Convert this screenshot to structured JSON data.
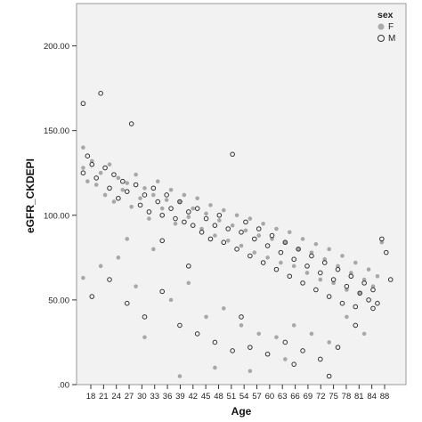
{
  "chart_data": {
    "type": "scatter",
    "xlabel": "Age",
    "ylabel": "eGFR_CKDEPI",
    "ylim": [
      0,
      225
    ],
    "y_ticks": [
      ".00",
      "50.00",
      "100.00",
      "150.00",
      "200.00"
    ],
    "y_tick_values": [
      0,
      50,
      100,
      150,
      200
    ],
    "x_ticks": [
      "18",
      "21",
      "24",
      "27",
      "30",
      "33",
      "36",
      "39",
      "42",
      "45",
      "48",
      "51",
      "54",
      "57",
      "60",
      "63",
      "66",
      "69",
      "72",
      "75",
      "78",
      "81",
      "84",
      "88"
    ],
    "grid": false,
    "background": "#f2f2f2",
    "legend": {
      "title": "sex",
      "placement": "top-right",
      "entries": [
        {
          "label": "F",
          "marker": "filled-circle",
          "color": "#aaaaaa"
        },
        {
          "label": "M",
          "marker": "open-circle",
          "color": "#333333"
        }
      ]
    },
    "series": [
      {
        "name": "F",
        "marker": "filled",
        "color": "#a8a8a8",
        "points": [
          [
            18,
            140
          ],
          [
            18,
            128
          ],
          [
            19,
            120
          ],
          [
            20,
            132
          ],
          [
            21,
            118
          ],
          [
            22,
            125
          ],
          [
            23,
            112
          ],
          [
            24,
            130
          ],
          [
            25,
            108
          ],
          [
            26,
            122
          ],
          [
            27,
            115
          ],
          [
            28,
            119
          ],
          [
            29,
            105
          ],
          [
            30,
            124
          ],
          [
            31,
            110
          ],
          [
            32,
            116
          ],
          [
            33,
            98
          ],
          [
            34,
            112
          ],
          [
            35,
            120
          ],
          [
            36,
            104
          ],
          [
            37,
            109
          ],
          [
            38,
            115
          ],
          [
            39,
            95
          ],
          [
            40,
            108
          ],
          [
            41,
            112
          ],
          [
            42,
            99
          ],
          [
            43,
            104
          ],
          [
            44,
            110
          ],
          [
            45,
            92
          ],
          [
            46,
            101
          ],
          [
            47,
            106
          ],
          [
            48,
            88
          ],
          [
            49,
            97
          ],
          [
            50,
            103
          ],
          [
            51,
            85
          ],
          [
            52,
            94
          ],
          [
            53,
            100
          ],
          [
            54,
            82
          ],
          [
            55,
            91
          ],
          [
            56,
            98
          ],
          [
            57,
            78
          ],
          [
            58,
            88
          ],
          [
            59,
            95
          ],
          [
            60,
            75
          ],
          [
            61,
            86
          ],
          [
            62,
            92
          ],
          [
            63,
            72
          ],
          [
            64,
            84
          ],
          [
            65,
            90
          ],
          [
            66,
            70
          ],
          [
            67,
            80
          ],
          [
            68,
            86
          ],
          [
            69,
            66
          ],
          [
            70,
            78
          ],
          [
            71,
            83
          ],
          [
            72,
            62
          ],
          [
            73,
            74
          ],
          [
            74,
            80
          ],
          [
            75,
            60
          ],
          [
            76,
            70
          ],
          [
            77,
            76
          ],
          [
            78,
            56
          ],
          [
            79,
            66
          ],
          [
            80,
            72
          ],
          [
            81,
            54
          ],
          [
            82,
            62
          ],
          [
            83,
            68
          ],
          [
            84,
            58
          ],
          [
            85,
            64
          ],
          [
            86,
            84
          ],
          [
            18,
            63
          ],
          [
            22,
            70
          ],
          [
            26,
            75
          ],
          [
            30,
            58
          ],
          [
            34,
            80
          ],
          [
            38,
            50
          ],
          [
            42,
            60
          ],
          [
            46,
            40
          ],
          [
            50,
            45
          ],
          [
            54,
            35
          ],
          [
            58,
            30
          ],
          [
            62,
            28
          ],
          [
            66,
            35
          ],
          [
            70,
            30
          ],
          [
            74,
            25
          ],
          [
            78,
            40
          ],
          [
            82,
            30
          ],
          [
            48,
            10
          ],
          [
            56,
            8
          ],
          [
            64,
            15
          ],
          [
            40,
            5
          ],
          [
            32,
            28
          ],
          [
            28,
            86
          ]
        ]
      },
      {
        "name": "M",
        "marker": "open",
        "color": "#333333",
        "points": [
          [
            18,
            166
          ],
          [
            19,
            135
          ],
          [
            18,
            125
          ],
          [
            20,
            130
          ],
          [
            21,
            122
          ],
          [
            22,
            172
          ],
          [
            23,
            128
          ],
          [
            24,
            116
          ],
          [
            25,
            124
          ],
          [
            26,
            110
          ],
          [
            27,
            120
          ],
          [
            28,
            114
          ],
          [
            29,
            154
          ],
          [
            30,
            118
          ],
          [
            31,
            106
          ],
          [
            32,
            112
          ],
          [
            33,
            102
          ],
          [
            34,
            116
          ],
          [
            35,
            108
          ],
          [
            36,
            100
          ],
          [
            37,
            112
          ],
          [
            38,
            104
          ],
          [
            39,
            98
          ],
          [
            40,
            108
          ],
          [
            41,
            96
          ],
          [
            42,
            102
          ],
          [
            43,
            94
          ],
          [
            44,
            104
          ],
          [
            45,
            90
          ],
          [
            46,
            98
          ],
          [
            47,
            86
          ],
          [
            48,
            94
          ],
          [
            49,
            100
          ],
          [
            50,
            84
          ],
          [
            51,
            92
          ],
          [
            52,
            136
          ],
          [
            53,
            80
          ],
          [
            54,
            90
          ],
          [
            55,
            96
          ],
          [
            56,
            76
          ],
          [
            57,
            86
          ],
          [
            58,
            92
          ],
          [
            59,
            72
          ],
          [
            60,
            82
          ],
          [
            61,
            88
          ],
          [
            62,
            68
          ],
          [
            63,
            78
          ],
          [
            64,
            84
          ],
          [
            65,
            64
          ],
          [
            66,
            74
          ],
          [
            67,
            80
          ],
          [
            68,
            60
          ],
          [
            69,
            70
          ],
          [
            70,
            76
          ],
          [
            71,
            56
          ],
          [
            72,
            66
          ],
          [
            73,
            72
          ],
          [
            74,
            52
          ],
          [
            75,
            62
          ],
          [
            76,
            68
          ],
          [
            77,
            48
          ],
          [
            78,
            58
          ],
          [
            79,
            64
          ],
          [
            80,
            46
          ],
          [
            81,
            54
          ],
          [
            82,
            60
          ],
          [
            83,
            50
          ],
          [
            84,
            56
          ],
          [
            85,
            48
          ],
          [
            86,
            86
          ],
          [
            87,
            78
          ],
          [
            88,
            62
          ],
          [
            20,
            52
          ],
          [
            24,
            62
          ],
          [
            28,
            48
          ],
          [
            32,
            40
          ],
          [
            36,
            55
          ],
          [
            40,
            35
          ],
          [
            44,
            30
          ],
          [
            48,
            25
          ],
          [
            52,
            20
          ],
          [
            56,
            22
          ],
          [
            60,
            18
          ],
          [
            64,
            25
          ],
          [
            68,
            20
          ],
          [
            72,
            15
          ],
          [
            76,
            22
          ],
          [
            80,
            35
          ],
          [
            84,
            45
          ],
          [
            66,
            12
          ],
          [
            74,
            5
          ],
          [
            54,
            40
          ],
          [
            36,
            85
          ],
          [
            42,
            70
          ]
        ]
      }
    ]
  }
}
